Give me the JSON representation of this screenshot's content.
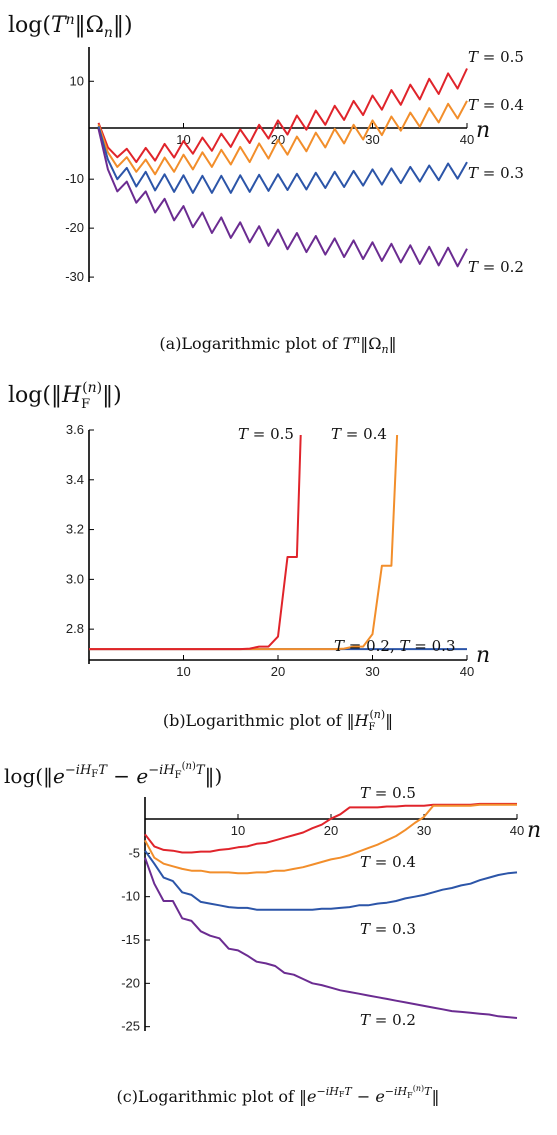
{
  "colors": {
    "T0.2": "#6b2c91",
    "T0.3": "#2c55a8",
    "T0.4": "#f28e2b",
    "T0.5": "#e0242b"
  },
  "chart_data": [
    {
      "type": "line",
      "panel": "a",
      "ylabel": "log(Tⁿ‖Ωₙ‖)",
      "xlabel": "n",
      "caption": "(a)Logarithmic plot of Tⁿ‖Ωₙ‖",
      "xlim": [
        0,
        40
      ],
      "ylim": [
        -31,
        17
      ],
      "xticks": [
        10,
        20,
        30,
        40
      ],
      "yticks": [
        10,
        -10,
        -20,
        -30
      ],
      "series": [
        {
          "name": "T = 0.5",
          "key": "T0.5",
          "x": [
            1,
            2,
            3,
            4,
            5,
            6,
            7,
            8,
            9,
            10,
            11,
            12,
            13,
            14,
            15,
            16,
            17,
            18,
            19,
            20,
            21,
            22,
            23,
            24,
            25,
            26,
            27,
            28,
            29,
            30,
            31,
            32,
            33,
            34,
            35,
            36,
            37,
            38,
            39,
            40
          ],
          "y": [
            1.5,
            -3.5,
            -5.5,
            -3.8,
            -6.5,
            -3.6,
            -6.2,
            -2.8,
            -5.6,
            -2.2,
            -4.8,
            -1.5,
            -4.2,
            -0.7,
            -3.4,
            0.2,
            -2.6,
            1.1,
            -1.7,
            2,
            -0.9,
            3,
            0.1,
            4,
            1.1,
            5,
            2.1,
            6,
            3.1,
            7.1,
            4.2,
            8.2,
            5.2,
            9.3,
            6.3,
            10.5,
            7.4,
            11.6,
            8.5,
            12.6
          ]
        },
        {
          "name": "T = 0.4",
          "key": "T0.4",
          "x": [
            1,
            2,
            3,
            4,
            5,
            6,
            7,
            8,
            9,
            10,
            11,
            12,
            13,
            14,
            15,
            16,
            17,
            18,
            19,
            20,
            21,
            22,
            23,
            24,
            25,
            26,
            27,
            28,
            29,
            30,
            31,
            32,
            33,
            34,
            35,
            36,
            37,
            38,
            39,
            40
          ],
          "y": [
            1.2,
            -4.5,
            -7.5,
            -5.5,
            -8.5,
            -6,
            -9,
            -5.6,
            -8.5,
            -5,
            -8,
            -4.5,
            -7.5,
            -4,
            -7,
            -3.4,
            -6.5,
            -2.7,
            -5.8,
            -2,
            -5,
            -1.3,
            -4.3,
            -0.5,
            -3.5,
            0.3,
            -2.7,
            1.1,
            -1.9,
            2,
            -1,
            2.8,
            -0.1,
            3.6,
            0.7,
            4.5,
            1.6,
            5.4,
            2.4,
            6
          ]
        },
        {
          "name": "T = 0.3",
          "key": "T0.3",
          "x": [
            1,
            2,
            3,
            4,
            5,
            6,
            7,
            8,
            9,
            10,
            11,
            12,
            13,
            14,
            15,
            16,
            17,
            18,
            19,
            20,
            21,
            22,
            23,
            24,
            25,
            26,
            27,
            28,
            29,
            30,
            31,
            32,
            33,
            34,
            35,
            36,
            37,
            38,
            39,
            40
          ],
          "y": [
            0.8,
            -6,
            -10,
            -7.7,
            -11.5,
            -8.5,
            -12.3,
            -9,
            -12.6,
            -9.2,
            -12.8,
            -9.3,
            -12.8,
            -9.3,
            -12.8,
            -9.2,
            -12.6,
            -9.1,
            -12.4,
            -9,
            -12.2,
            -8.9,
            -12.1,
            -8.7,
            -11.8,
            -8.5,
            -11.6,
            -8.3,
            -11.3,
            -8,
            -11.1,
            -7.8,
            -10.8,
            -7.5,
            -10.5,
            -7.2,
            -10.2,
            -6.8,
            -9.9,
            -6.5
          ]
        },
        {
          "name": "T = 0.2",
          "key": "T0.2",
          "x": [
            1,
            2,
            3,
            4,
            5,
            6,
            7,
            8,
            9,
            10,
            11,
            12,
            13,
            14,
            15,
            16,
            17,
            18,
            19,
            20,
            21,
            22,
            23,
            24,
            25,
            26,
            27,
            28,
            29,
            30,
            31,
            32,
            33,
            34,
            35,
            36,
            37,
            38,
            39,
            40
          ],
          "y": [
            0.3,
            -8,
            -12.5,
            -10.5,
            -14.8,
            -12.5,
            -16.8,
            -14,
            -18.4,
            -15.5,
            -19.8,
            -16.8,
            -21,
            -17.8,
            -22,
            -18.8,
            -22.9,
            -19.6,
            -23.6,
            -20.3,
            -24.3,
            -21,
            -24.9,
            -21.6,
            -25.4,
            -22.1,
            -25.9,
            -22.5,
            -26.3,
            -22.9,
            -26.7,
            -23.2,
            -27,
            -23.5,
            -27.3,
            -23.8,
            -27.6,
            -24,
            -27.8,
            -24.2
          ]
        }
      ]
    },
    {
      "type": "line",
      "panel": "b",
      "ylabel": "log(‖H_F^(n)‖)",
      "xlabel": "n",
      "caption": "(b)Logarithmic plot of ‖H_F^(n)‖",
      "xlim": [
        0,
        40
      ],
      "ylim": [
        2.66,
        3.6
      ],
      "xticks": [
        10,
        20,
        30,
        40
      ],
      "yticks": [
        2.8,
        3.0,
        3.2,
        3.4,
        3.6
      ],
      "series": [
        {
          "name": "T = 0.2, T = 0.3",
          "key": "T0.3",
          "x": [
            0,
            40
          ],
          "y": [
            2.72,
            2.72
          ]
        },
        {
          "name": "T = 0.4",
          "key": "T0.4",
          "x": [
            0,
            26,
            27,
            28,
            29,
            30,
            31,
            32,
            32.6
          ],
          "y": [
            2.72,
            2.72,
            2.722,
            2.73,
            2.73,
            2.78,
            3.055,
            3.055,
            3.58
          ]
        },
        {
          "name": "T = 0.5",
          "key": "T0.5",
          "x": [
            0,
            16,
            17,
            18,
            19,
            20,
            21,
            22,
            22.4
          ],
          "y": [
            2.72,
            2.72,
            2.722,
            2.73,
            2.73,
            2.77,
            3.09,
            3.09,
            3.58
          ]
        }
      ]
    },
    {
      "type": "line",
      "panel": "c",
      "ylabel": "log(‖e^(−iH_F T) − e^(−iH_F^(n) T)‖)",
      "xlabel": "n",
      "caption": "(c)Logarithmic plot of ‖e^(−iH_F T) − e^(−iH_F^(n) T)‖",
      "xlim": [
        0,
        40
      ],
      "ylim": [
        -25.5,
        1.5
      ],
      "xticks": [
        10,
        20,
        30,
        40
      ],
      "yticks": [
        -5,
        -10,
        -15,
        -20,
        -25
      ],
      "series": [
        {
          "name": "T = 0.5",
          "key": "T0.5",
          "x": [
            0,
            1,
            2,
            3,
            4,
            5,
            6,
            7,
            8,
            9,
            10,
            11,
            12,
            13,
            14,
            15,
            16,
            17,
            18,
            19,
            20,
            21,
            22,
            23,
            24,
            25,
            26,
            27,
            28,
            29,
            30,
            31,
            32,
            33,
            34,
            35,
            36,
            37,
            38,
            39,
            40
          ],
          "y": [
            -2.8,
            -4.2,
            -4.6,
            -4.7,
            -4.9,
            -4.9,
            -4.8,
            -4.8,
            -4.6,
            -4.5,
            -4.3,
            -4.2,
            -3.9,
            -3.8,
            -3.5,
            -3.2,
            -2.9,
            -2.6,
            -2.1,
            -1.7,
            -1,
            -0.5,
            0.3,
            0.3,
            0.3,
            0.3,
            0.4,
            0.4,
            0.5,
            0.5,
            0.5,
            0.6,
            0.6,
            0.6,
            0.6,
            0.6,
            0.7,
            0.7,
            0.7,
            0.7,
            0.7
          ]
        },
        {
          "name": "T = 0.4",
          "key": "T0.4",
          "x": [
            0,
            1,
            2,
            3,
            4,
            5,
            6,
            7,
            8,
            9,
            10,
            11,
            12,
            13,
            14,
            15,
            16,
            17,
            18,
            19,
            20,
            21,
            22,
            23,
            24,
            25,
            26,
            27,
            28,
            29,
            30,
            31,
            32,
            33,
            34,
            35,
            36,
            37,
            38,
            39,
            40
          ],
          "y": [
            -3.5,
            -5.5,
            -6.2,
            -6.5,
            -6.8,
            -7,
            -7,
            -7.2,
            -7.2,
            -7.2,
            -7.3,
            -7.3,
            -7.2,
            -7.2,
            -7,
            -7,
            -6.8,
            -6.6,
            -6.3,
            -6,
            -5.7,
            -5.5,
            -5.2,
            -4.8,
            -4.4,
            -4,
            -3.5,
            -3,
            -2.3,
            -1.5,
            -0.8,
            0.5,
            0.5,
            0.5,
            0.5,
            0.5,
            0.6,
            0.6,
            0.6,
            0.6,
            0.6
          ]
        },
        {
          "name": "T = 0.3",
          "key": "T0.3",
          "x": [
            0,
            1,
            2,
            3,
            4,
            5,
            6,
            7,
            8,
            9,
            10,
            11,
            12,
            13,
            14,
            15,
            16,
            17,
            18,
            19,
            20,
            21,
            22,
            23,
            24,
            25,
            26,
            27,
            28,
            29,
            30,
            31,
            32,
            33,
            34,
            35,
            36,
            37,
            38,
            39,
            40
          ],
          "y": [
            -4.7,
            -6.2,
            -7.8,
            -8.2,
            -9.5,
            -9.8,
            -10.6,
            -10.8,
            -11,
            -11.2,
            -11.3,
            -11.3,
            -11.5,
            -11.5,
            -11.5,
            -11.5,
            -11.5,
            -11.5,
            -11.5,
            -11.4,
            -11.4,
            -11.3,
            -11.2,
            -11,
            -11,
            -10.8,
            -10.7,
            -10.5,
            -10.2,
            -10,
            -9.8,
            -9.5,
            -9.2,
            -9,
            -8.7,
            -8.5,
            -8.1,
            -7.8,
            -7.5,
            -7.3,
            -7.2
          ]
        },
        {
          "name": "T = 0.2",
          "key": "T0.2",
          "x": [
            0,
            1,
            2,
            3,
            4,
            5,
            6,
            7,
            8,
            9,
            10,
            11,
            12,
            13,
            14,
            15,
            16,
            17,
            18,
            19,
            20,
            21,
            22,
            23,
            24,
            25,
            26,
            27,
            28,
            29,
            30,
            31,
            32,
            33,
            34,
            35,
            36,
            37,
            38,
            39,
            40
          ],
          "y": [
            -5.5,
            -8.5,
            -10.5,
            -10.5,
            -12.5,
            -12.8,
            -14,
            -14.5,
            -14.8,
            -16,
            -16.2,
            -16.8,
            -17.5,
            -17.7,
            -18,
            -18.8,
            -19,
            -19.5,
            -20,
            -20.2,
            -20.5,
            -20.8,
            -21,
            -21.2,
            -21.4,
            -21.6,
            -21.8,
            -22,
            -22.2,
            -22.4,
            -22.6,
            -22.8,
            -23,
            -23.2,
            -23.3,
            -23.4,
            -23.5,
            -23.6,
            -23.8,
            -23.9,
            -24
          ]
        }
      ]
    }
  ]
}
